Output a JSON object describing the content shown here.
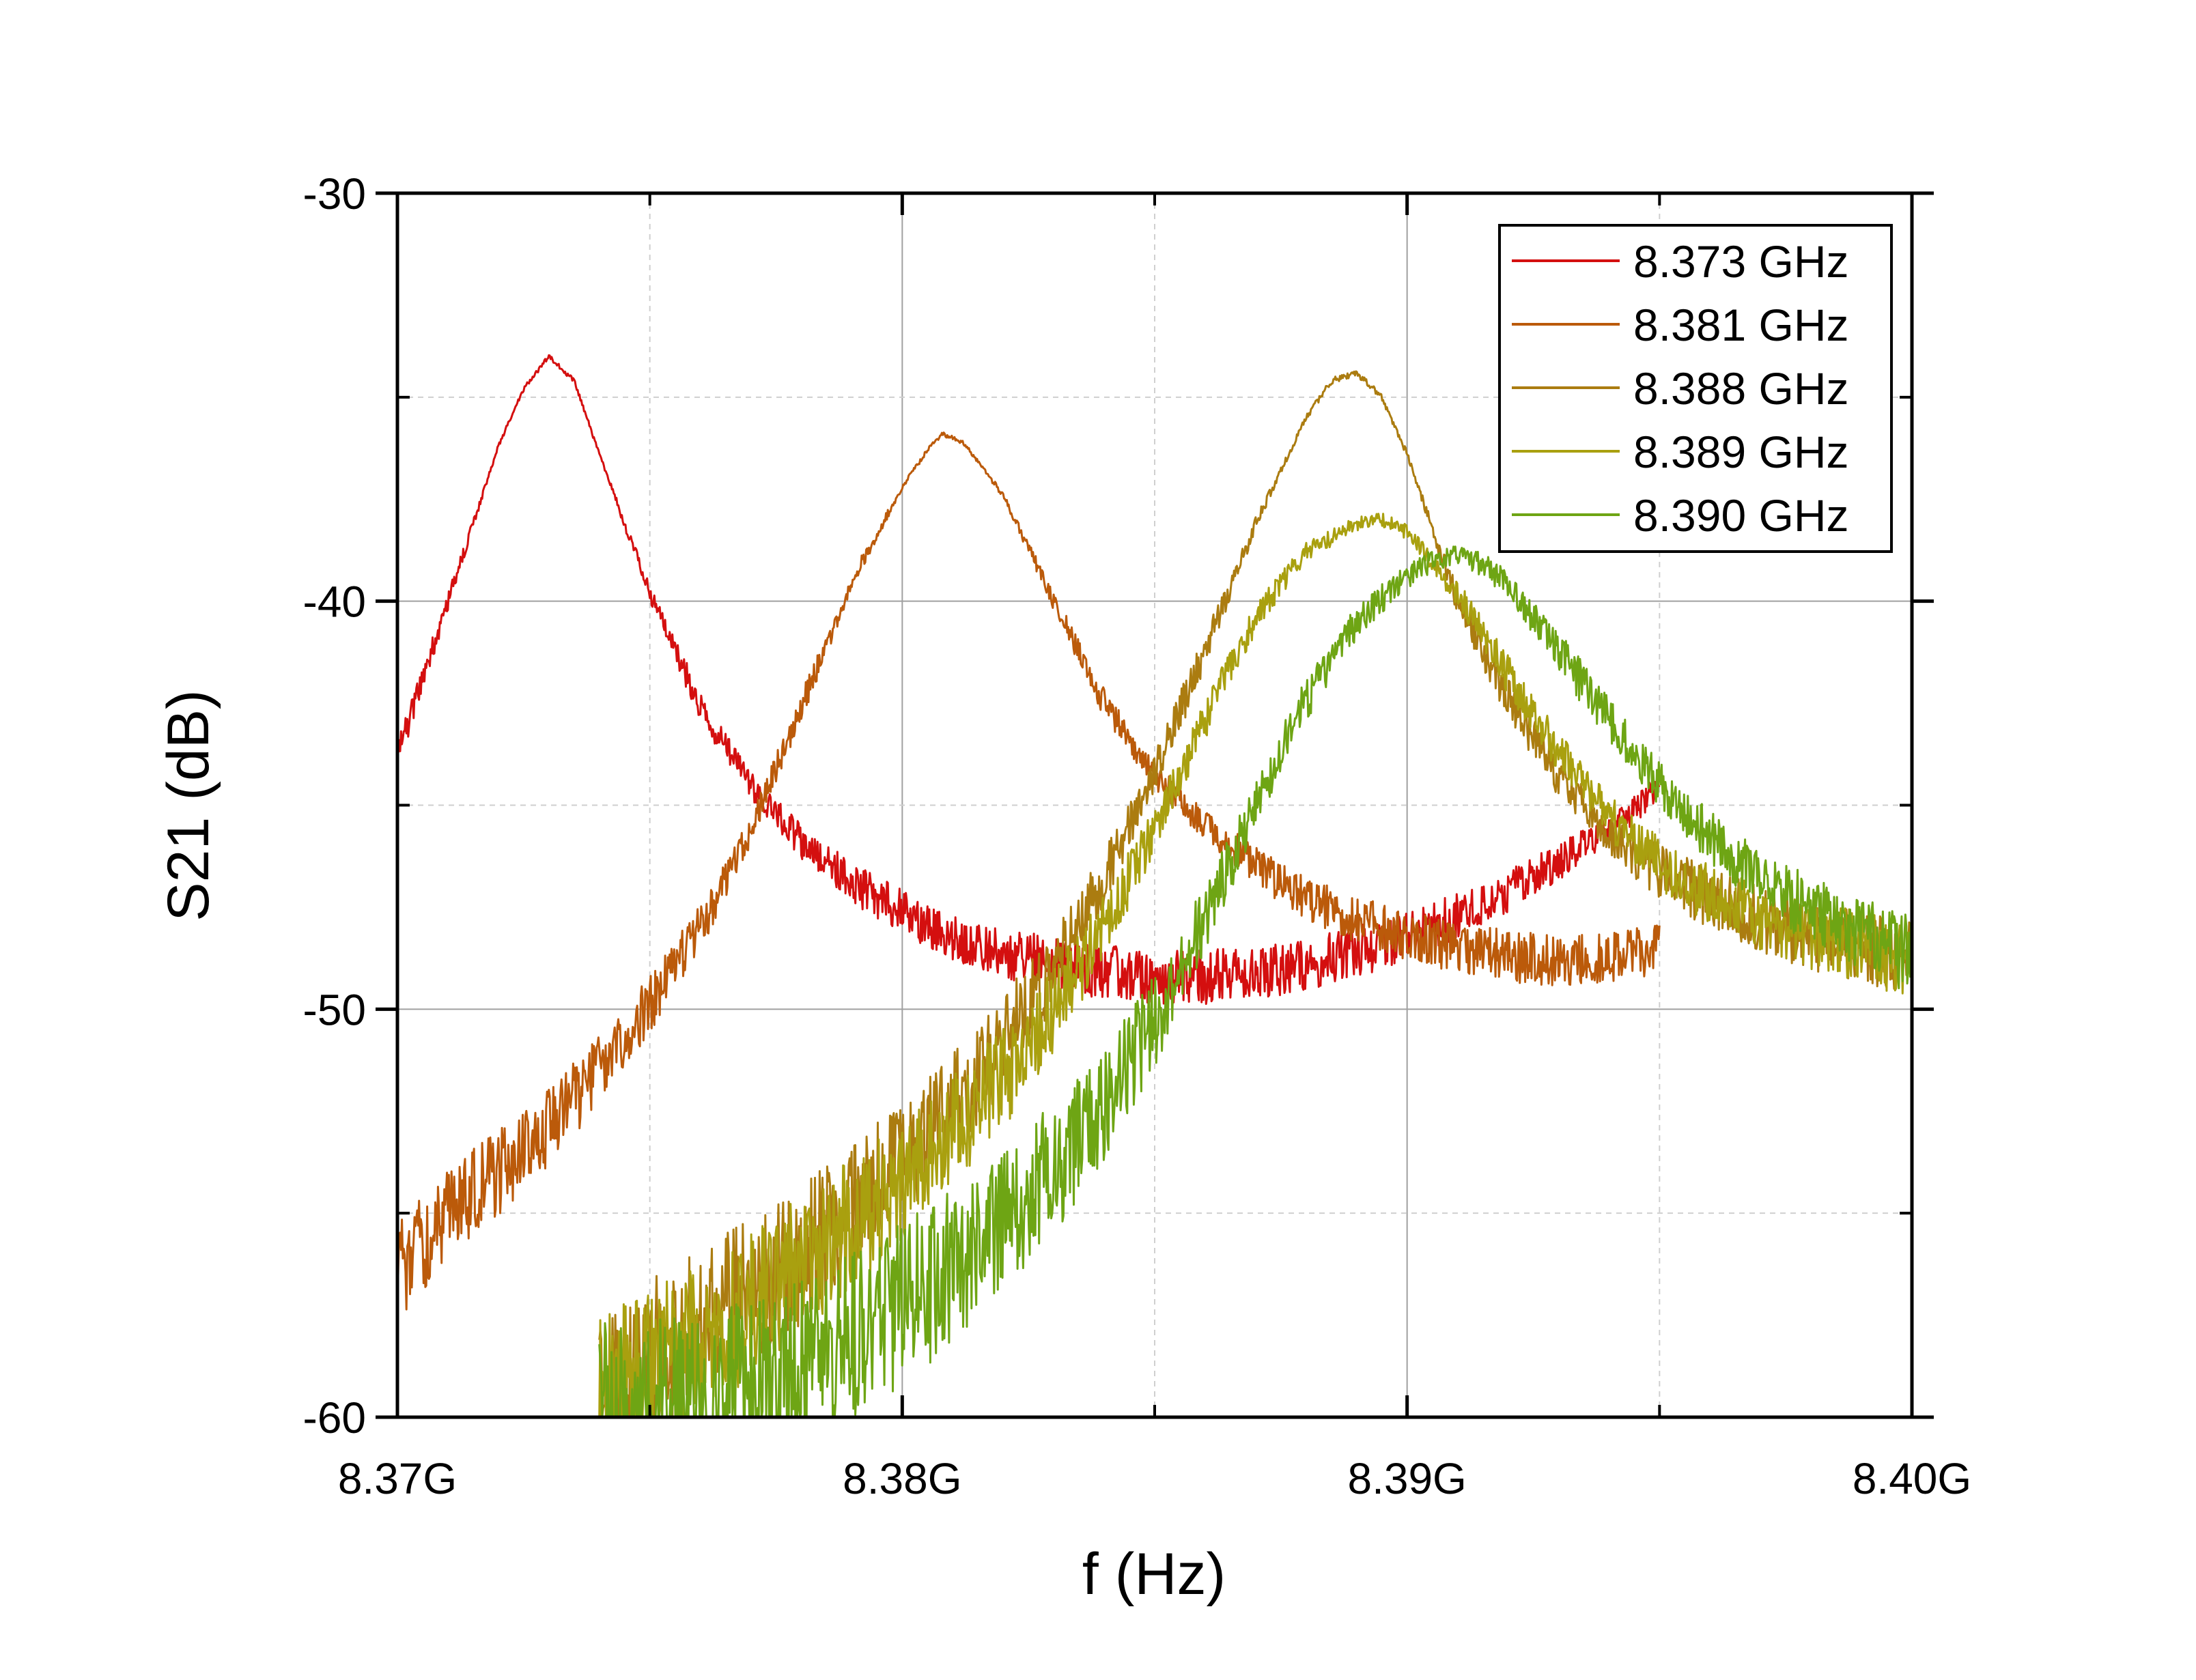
{
  "chart_data": {
    "type": "line",
    "title": "",
    "xlabel": "f (Hz)",
    "ylabel": "S21 (dB)",
    "xlim": [
      8.37,
      8.4
    ],
    "ylim": [
      -60,
      -30
    ],
    "x_ticks": [
      {
        "value": 8.37,
        "label": "8.37G"
      },
      {
        "value": 8.38,
        "label": "8.38G"
      },
      {
        "value": 8.39,
        "label": "8.39G"
      },
      {
        "value": 8.4,
        "label": "8.40G"
      }
    ],
    "y_ticks": [
      {
        "value": -30,
        "label": "-30"
      },
      {
        "value": -40,
        "label": "-40"
      },
      {
        "value": -50,
        "label": "-50"
      },
      {
        "value": -60,
        "label": "-60"
      }
    ],
    "x_minor_ticks": [
      8.375,
      8.385,
      8.395
    ],
    "y_minor_ticks": [
      -35,
      -45,
      -55
    ],
    "grid": true,
    "legend_position": "top-right",
    "series": [
      {
        "name": "8.373 GHz",
        "color": "#d40f0f",
        "noise": 0.35,
        "x": [
          8.37,
          8.371,
          8.372,
          8.3725,
          8.373,
          8.3735,
          8.374,
          8.375,
          8.376,
          8.377,
          8.378,
          8.379,
          8.38,
          8.381,
          8.382,
          8.383,
          8.384,
          8.385,
          8.386,
          8.387,
          8.388,
          8.389,
          8.39,
          8.391,
          8.392,
          8.393,
          8.394,
          8.395
        ],
        "y": [
          -43.8,
          -40.0,
          -36.2,
          -34.8,
          -34.0,
          -34.6,
          -36.4,
          -39.8,
          -42.6,
          -44.5,
          -45.9,
          -46.9,
          -47.6,
          -48.2,
          -48.6,
          -48.9,
          -49.1,
          -49.2,
          -49.2,
          -49.1,
          -48.9,
          -48.6,
          -48.2,
          -47.7,
          -47.1,
          -46.4,
          -45.6,
          -44.6
        ]
      },
      {
        "name": "8.381 GHz",
        "color": "#bb5a0a",
        "noise": 0.35,
        "x": [
          8.37,
          8.371,
          8.372,
          8.373,
          8.374,
          8.375,
          8.376,
          8.377,
          8.378,
          8.379,
          8.38,
          8.3805,
          8.3808,
          8.3812,
          8.382,
          8.383,
          8.384,
          8.385,
          8.386,
          8.387,
          8.388,
          8.389,
          8.39,
          8.391,
          8.392,
          8.393,
          8.394,
          8.395
        ],
        "y": [
          -56.5,
          -55.0,
          -54.0,
          -52.9,
          -51.5,
          -49.9,
          -48.0,
          -45.6,
          -42.6,
          -39.5,
          -37.2,
          -36.3,
          -35.9,
          -36.1,
          -37.4,
          -40.0,
          -42.5,
          -44.3,
          -45.5,
          -46.5,
          -47.3,
          -47.8,
          -48.2,
          -48.5,
          -48.7,
          -48.8,
          -48.8,
          -48.5
        ]
      },
      {
        "name": "8.388 GHz",
        "color": "#ab7c10",
        "noise": 0.5,
        "x": [
          8.374,
          8.375,
          8.376,
          8.377,
          8.378,
          8.379,
          8.38,
          8.381,
          8.382,
          8.383,
          8.384,
          8.385,
          8.386,
          8.387,
          8.388,
          8.3885,
          8.389,
          8.3895,
          8.39,
          8.391,
          8.392,
          8.393,
          8.394,
          8.395,
          8.396,
          8.397,
          8.398,
          8.399,
          8.4
        ],
        "y": [
          -59.4,
          -58.6,
          -57.8,
          -56.9,
          -56.0,
          -54.9,
          -53.7,
          -52.4,
          -50.8,
          -49.0,
          -46.8,
          -44.2,
          -41.2,
          -38.1,
          -35.5,
          -34.6,
          -34.4,
          -35.0,
          -36.4,
          -40.0,
          -42.4,
          -44.3,
          -45.7,
          -46.6,
          -47.3,
          -47.8,
          -48.2,
          -48.5,
          -48.7
        ]
      },
      {
        "name": "8.389 GHz",
        "color": "#a9a00f",
        "noise": 0.5,
        "x": [
          8.374,
          8.375,
          8.376,
          8.377,
          8.378,
          8.379,
          8.38,
          8.381,
          8.382,
          8.383,
          8.384,
          8.385,
          8.386,
          8.387,
          8.388,
          8.389,
          8.3895,
          8.39,
          8.391,
          8.392,
          8.393,
          8.394,
          8.395,
          8.396,
          8.397,
          8.398,
          8.399,
          8.4
        ],
        "y": [
          -59.6,
          -58.9,
          -58.1,
          -57.2,
          -56.3,
          -55.3,
          -54.2,
          -53.0,
          -51.7,
          -50.0,
          -48.0,
          -45.6,
          -42.9,
          -40.4,
          -38.8,
          -38.1,
          -38.0,
          -38.3,
          -39.8,
          -41.8,
          -43.7,
          -45.3,
          -46.4,
          -47.2,
          -47.8,
          -48.2,
          -48.5,
          -48.8
        ]
      },
      {
        "name": "8.390 GHz",
        "color": "#6ea514",
        "noise": 0.55,
        "x": [
          8.374,
          8.375,
          8.376,
          8.377,
          8.378,
          8.379,
          8.38,
          8.381,
          8.382,
          8.383,
          8.384,
          8.385,
          8.386,
          8.387,
          8.388,
          8.389,
          8.39,
          8.3905,
          8.391,
          8.3915,
          8.392,
          8.393,
          8.394,
          8.395,
          8.396,
          8.397,
          8.398,
          8.399,
          8.4
        ],
        "y": [
          -60.0,
          -60.0,
          -59.8,
          -59.4,
          -58.8,
          -58.1,
          -57.2,
          -56.3,
          -55.2,
          -53.9,
          -52.3,
          -50.3,
          -47.8,
          -45.0,
          -42.4,
          -40.5,
          -39.4,
          -39.0,
          -38.9,
          -39.1,
          -39.6,
          -41.2,
          -42.9,
          -44.5,
          -45.8,
          -46.8,
          -47.6,
          -48.2,
          -48.7
        ]
      }
    ]
  }
}
